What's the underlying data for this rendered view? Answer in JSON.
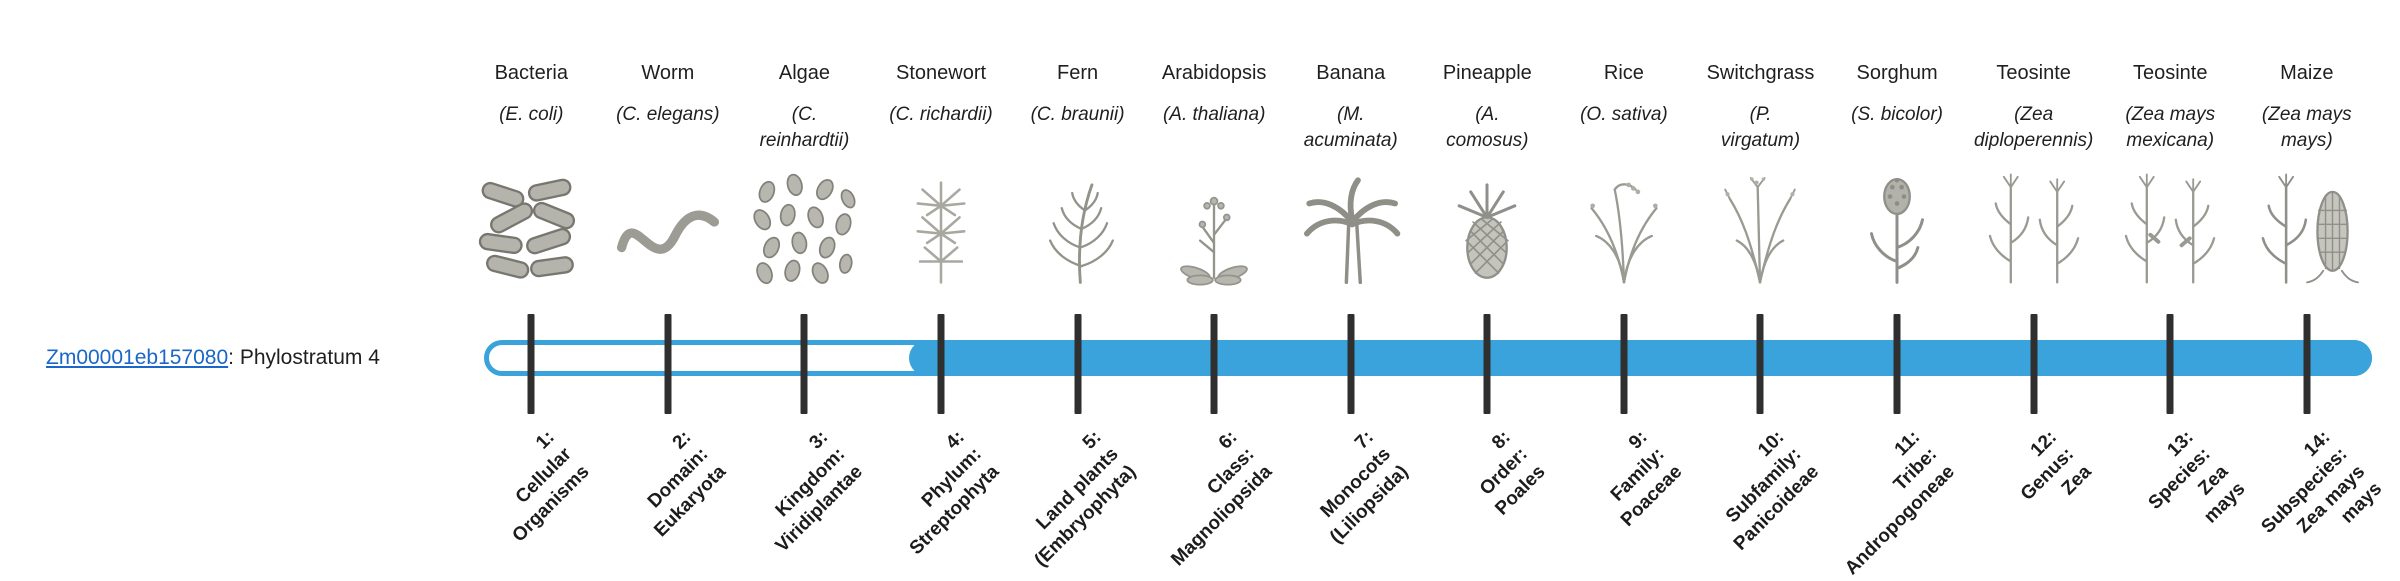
{
  "gene": {
    "id": "Zm00001eb157080",
    "suffix": ": Phylostratum 4",
    "phylostratum": 4
  },
  "colors": {
    "bar_blue": "#3ba3dc",
    "tick_dark": "#2f2f2f",
    "link_blue": "#1a67c9",
    "text": "#1f1f1f"
  },
  "bar": {
    "fill_start_percent": 22.5
  },
  "items": [
    {
      "name": "Bacteria",
      "sci": "(E. coli)",
      "icon": "bacteria-icon",
      "label": "1:\nCellular\nOrganisms"
    },
    {
      "name": "Worm",
      "sci": "(C. elegans)",
      "icon": "worm-icon",
      "label": "2:\nDomain:\nEukaryota"
    },
    {
      "name": "Algae",
      "sci": "(C.\nreinhardtii)",
      "icon": "algae-icon",
      "label": "3:\nKingdom:\nViridiplantae"
    },
    {
      "name": "Stonewort",
      "sci": "(C. richardii)",
      "icon": "stonewort-icon",
      "label": "4:\nPhylum:\nStreptophyta"
    },
    {
      "name": "Fern",
      "sci": "(C. braunii)",
      "icon": "fern-icon",
      "label": "5:\nLand plants\n(Embryophyta)"
    },
    {
      "name": "Arabidopsis",
      "sci": "(A. thaliana)",
      "icon": "arabidopsis-icon",
      "label": "6:\nClass:\nMagnoliopsida"
    },
    {
      "name": "Banana",
      "sci": "(M.\nacuminata)",
      "icon": "banana-icon",
      "label": "7:\nMonocots\n(Liliopsida)"
    },
    {
      "name": "Pineapple",
      "sci": "(A.\ncomosus)",
      "icon": "pineapple-icon",
      "label": "8:\nOrder:\nPoales"
    },
    {
      "name": "Rice",
      "sci": "(O. sativa)",
      "icon": "rice-icon",
      "label": "9:\nFamily:\nPoaceae"
    },
    {
      "name": "Switchgrass",
      "sci": "(P.\nvirgatum)",
      "icon": "switchgrass-icon",
      "label": "10:\nSubfamily:\nPanicoideae"
    },
    {
      "name": "Sorghum",
      "sci": "(S. bicolor)",
      "icon": "sorghum-icon",
      "label": "11:\nTribe:\nAndropogoneae"
    },
    {
      "name": "Teosinte",
      "sci": "(Zea\ndiploperennis)",
      "icon": "teosinte-icon",
      "label": "12:\nGenus:\nZea"
    },
    {
      "name": "Teosinte",
      "sci": "(Zea mays\nmexicana)",
      "icon": "teosinte-mexicana-icon",
      "label": "13:\nSpecies:\nZea\nmays"
    },
    {
      "name": "Maize",
      "sci": "(Zea mays\nmays)",
      "icon": "maize-icon",
      "label": "14:\nSubspecies:\nZea mays\nmays"
    }
  ]
}
